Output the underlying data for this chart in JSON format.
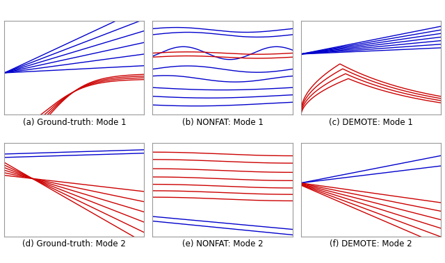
{
  "titles": [
    "(a) Ground-truth: Mode 1",
    "(b) NONFAT: Mode 1",
    "(c) DEMOTE: Mode 1",
    "(d) Ground-truth: Mode 2",
    "(e) NONFAT: Mode 2",
    "(f) DEMOTE: Mode 2"
  ],
  "blue_color": "#0000cc",
  "red_color": "#cc0000",
  "title_fontsize": 8.5,
  "linewidth": 1.0,
  "fig_width": 6.4,
  "fig_height": 3.79
}
